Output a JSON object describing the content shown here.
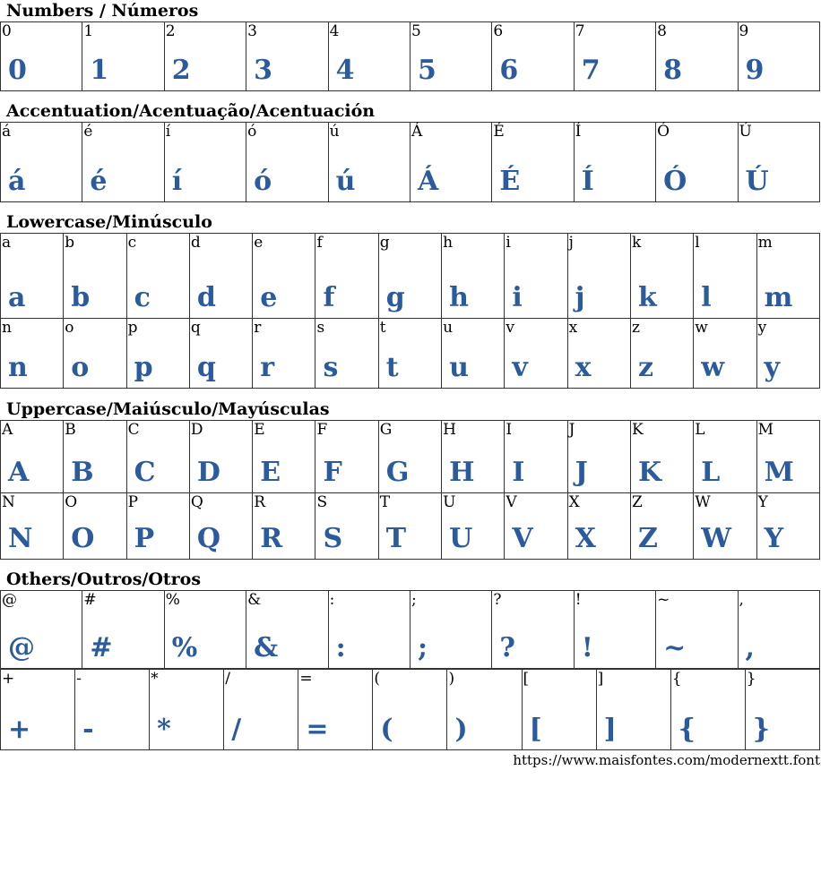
{
  "glyph_color": "#2b5b9c",
  "sections": [
    {
      "title": "Numbers / Números",
      "rows": [
        [
          "0",
          "1",
          "2",
          "3",
          "4",
          "5",
          "6",
          "7",
          "8",
          "9"
        ]
      ]
    },
    {
      "title": "Accentuation/Acentuação/Acentuación",
      "rows": [
        [
          "á",
          "é",
          "í",
          "ó",
          "ú",
          "Á",
          "É",
          "Í",
          "Ó",
          "Ú"
        ]
      ]
    },
    {
      "title": "Lowercase/Minúsculo",
      "rows": [
        [
          "a",
          "b",
          "c",
          "d",
          "e",
          "f",
          "g",
          "h",
          "i",
          "j",
          "k",
          "l",
          "m"
        ],
        [
          "n",
          "o",
          "p",
          "q",
          "r",
          "s",
          "t",
          "u",
          "v",
          "x",
          "z",
          "w",
          "y"
        ]
      ]
    },
    {
      "title": "Uppercase/Maiúsculo/Mayúsculas",
      "rows": [
        [
          "A",
          "B",
          "C",
          "D",
          "E",
          "F",
          "G",
          "H",
          "I",
          "J",
          "K",
          "L",
          "M"
        ],
        [
          "N",
          "O",
          "P",
          "Q",
          "R",
          "S",
          "T",
          "U",
          "V",
          "X",
          "Z",
          "W",
          "Y"
        ]
      ]
    },
    {
      "title": "Others/Outros/Otros",
      "rows": [
        [
          "@",
          "#",
          "%",
          "&",
          ":",
          ";",
          "?",
          "!",
          "~",
          ","
        ],
        [
          "+",
          "-",
          "*",
          "/",
          "=",
          "(",
          ")",
          "[",
          "]",
          "{",
          "}"
        ]
      ]
    }
  ],
  "footer": "https://www.maisfontes.com/modernextt.font"
}
